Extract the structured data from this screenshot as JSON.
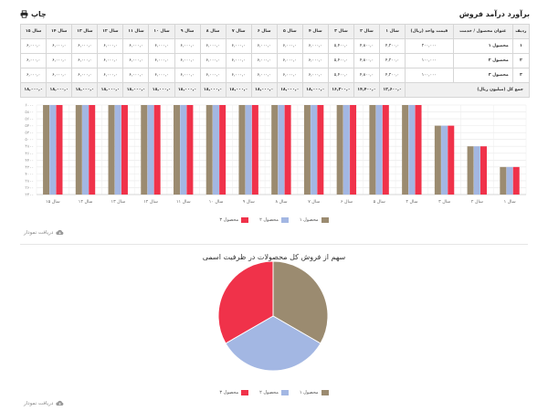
{
  "header": {
    "title": "برآورد درآمد فروش",
    "print_label": "چاپ"
  },
  "table": {
    "columns": [
      "ردیف",
      "عنوان محصول / خدمت",
      "قیمت واحد (ریال)",
      "سال ۱",
      "سال ۲",
      "سال ۳",
      "سال ۴",
      "سال ۵",
      "سال ۶",
      "سال ۷",
      "سال ۸",
      "سال ۹",
      "سال ۱۰",
      "سال ۱۱",
      "سال ۱۲",
      "سال ۱۳",
      "سال ۱۴",
      "سال ۱۵"
    ],
    "rows": [
      {
        "index": "۱",
        "name": "محصول ۱",
        "price": "۲۰۰,۰۰۰",
        "values": [
          "۴,۲۰۰,۰",
          "۴,۸۰۰,۰",
          "۵,۴۰۰,۰",
          "۶,۰۰۰,۰",
          "۶,۰۰۰,۰",
          "۶,۰۰۰,۰",
          "۶,۰۰۰,۰",
          "۶,۰۰۰,۰",
          "۶,۰۰۰,۰",
          "۶,۰۰۰,۰",
          "۶,۰۰۰,۰",
          "۶,۰۰۰,۰",
          "۶,۰۰۰,۰",
          "۶,۰۰۰,۰",
          "۶,۰۰۰,۰"
        ]
      },
      {
        "index": "۲",
        "name": "محصول ۲",
        "price": "۱۰۰,۰۰۰",
        "values": [
          "۴,۲۰۰,۰",
          "۴,۸۰۰,۰",
          "۵,۴۰۰,۰",
          "۶,۰۰۰,۰",
          "۶,۰۰۰,۰",
          "۶,۰۰۰,۰",
          "۶,۰۰۰,۰",
          "۶,۰۰۰,۰",
          "۶,۰۰۰,۰",
          "۶,۰۰۰,۰",
          "۶,۰۰۰,۰",
          "۶,۰۰۰,۰",
          "۶,۰۰۰,۰",
          "۶,۰۰۰,۰",
          "۶,۰۰۰,۰"
        ]
      },
      {
        "index": "۳",
        "name": "محصول ۳",
        "price": "۱۰۰,۰۰۰",
        "values": [
          "۴,۲۰۰,۰",
          "۴,۸۰۰,۰",
          "۵,۴۰۰,۰",
          "۶,۰۰۰,۰",
          "۶,۰۰۰,۰",
          "۶,۰۰۰,۰",
          "۶,۰۰۰,۰",
          "۶,۰۰۰,۰",
          "۶,۰۰۰,۰",
          "۶,۰۰۰,۰",
          "۶,۰۰۰,۰",
          "۶,۰۰۰,۰",
          "۶,۰۰۰,۰",
          "۶,۰۰۰,۰",
          "۶,۰۰۰,۰"
        ]
      }
    ],
    "total": {
      "label": "جمع کل (میلیون ریال)",
      "values": [
        "۱۲,۶۰۰,۰",
        "۱۴,۴۰۰,۰",
        "۱۶,۲۰۰,۰",
        "۱۸,۰۰۰,۰",
        "۱۸,۰۰۰,۰",
        "۱۸,۰۰۰,۰",
        "۱۸,۰۰۰,۰",
        "۱۸,۰۰۰,۰",
        "۱۸,۰۰۰,۰",
        "۱۸,۰۰۰,۰",
        "۱۸,۰۰۰,۰",
        "۱۸,۰۰۰,۰",
        "۱۸,۰۰۰,۰",
        "۱۸,۰۰۰,۰",
        "۱۸,۰۰۰,۰"
      ]
    }
  },
  "download_label": "دریافت نمودار",
  "chart_data": [
    {
      "type": "bar",
      "categories": [
        "سال ۱",
        "سال ۲",
        "سال ۳",
        "سال ۴",
        "سال ۵",
        "سال ۶",
        "سال ۷",
        "سال ۸",
        "سال ۹",
        "سال ۱۰",
        "سال ۱۱",
        "سال ۱۲",
        "سال ۱۳",
        "سال ۱۴",
        "سال ۱۵"
      ],
      "categories_order": "right-to-left",
      "series": [
        {
          "name": "محصول ۱",
          "color": "#9b8b70",
          "values": [
            4200,
            4800,
            5400,
            6000,
            6000,
            6000,
            6000,
            6000,
            6000,
            6000,
            6000,
            6000,
            6000,
            6000,
            6000
          ]
        },
        {
          "name": "محصول ۲",
          "color": "#a3b7e3",
          "values": [
            4200,
            4800,
            5400,
            6000,
            6000,
            6000,
            6000,
            6000,
            6000,
            6000,
            6000,
            6000,
            6000,
            6000,
            6000
          ]
        },
        {
          "name": "محصول ۳",
          "color": "#f0324a",
          "values": [
            4200,
            4800,
            5400,
            6000,
            6000,
            6000,
            6000,
            6000,
            6000,
            6000,
            6000,
            6000,
            6000,
            6000,
            6000
          ]
        }
      ],
      "y_ticks": [
        "۳۴۰۰",
        "۳۶۰۰",
        "۳۸۰۰",
        "۴۰۰۰",
        "۴۲۰۰",
        "۴۴۰۰",
        "۴۶۰۰",
        "۴۸۰۰",
        "۵۰۰۰",
        "۵۲۰۰",
        "۵۴۰۰",
        "۵۶۰۰",
        "۵۸۰۰",
        "۶۰۰۰"
      ],
      "ylim": [
        3400,
        6000
      ],
      "grid": true,
      "legend": "bottom-center",
      "title": "",
      "xlabel": "",
      "ylabel": ""
    },
    {
      "type": "pie",
      "title": "سهم از فروش کل محصولات در ظرفیت اسمی",
      "slices": [
        {
          "name": "محصول ۱",
          "color": "#9b8b70",
          "value": 33.333
        },
        {
          "name": "محصول ۲",
          "color": "#a3b7e3",
          "value": 33.333
        },
        {
          "name": "محصول ۳",
          "color": "#f0324a",
          "value": 33.333
        }
      ],
      "legend": "bottom-center"
    }
  ]
}
